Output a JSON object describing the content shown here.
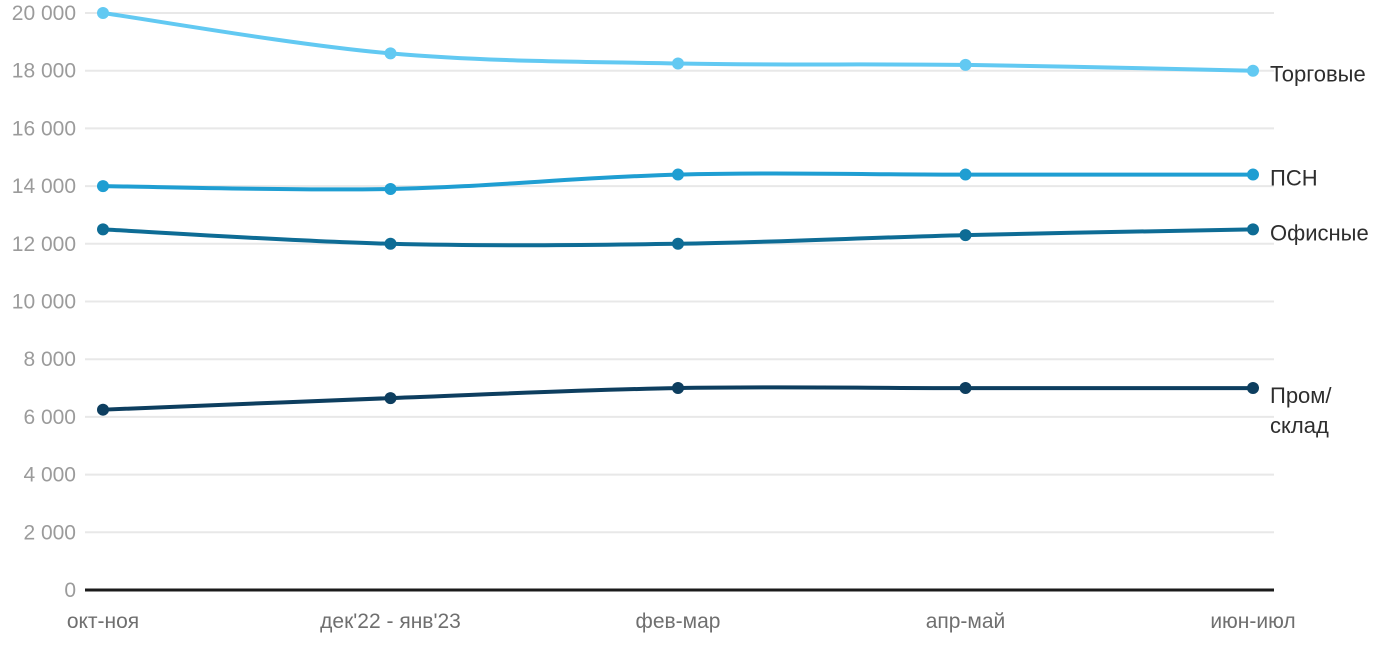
{
  "chart": {
    "background_color": "#ffffff",
    "grid_color": "#e8e8e8",
    "axis_line_color": "#1b1b1b",
    "y_tick_color": "#9b9b9b",
    "x_tick_color": "#6f6f6f",
    "series_label_color": "#2e2e2e"
  },
  "chart_data": {
    "type": "line",
    "title": "",
    "xlabel": "",
    "ylabel": "",
    "grid": true,
    "legend_position": "right-of-line-end",
    "ylim": [
      0,
      20000
    ],
    "y_ticks": [
      0,
      2000,
      4000,
      6000,
      8000,
      10000,
      12000,
      14000,
      16000,
      18000,
      20000
    ],
    "y_tick_labels": [
      "0",
      "2 000",
      "4 000",
      "6 000",
      "8 000",
      "10 000",
      "12 000",
      "14 000",
      "16 000",
      "18 000",
      "20 000"
    ],
    "categories": [
      "окт-ноя",
      "дек'22 - янв'23",
      "фев-мар",
      "апр-май",
      "июн-июл"
    ],
    "series": [
      {
        "name": "Торговые",
        "label_lines": [
          "Торговые"
        ],
        "color": "#62c9f2",
        "values": [
          20000,
          18600,
          18250,
          18200,
          18000
        ]
      },
      {
        "name": "ПСН",
        "label_lines": [
          "ПСН"
        ],
        "color": "#1f9ed2",
        "values": [
          14000,
          13900,
          14400,
          14400,
          14400
        ]
      },
      {
        "name": "Офисные",
        "label_lines": [
          "Офисные"
        ],
        "color": "#0e6c95",
        "values": [
          12500,
          12000,
          12000,
          12300,
          12500
        ]
      },
      {
        "name": "Пром/склад",
        "label_lines": [
          "Пром/",
          "склад"
        ],
        "color": "#0d3e5f",
        "values": [
          6250,
          6650,
          7000,
          7000,
          7000
        ]
      }
    ]
  }
}
